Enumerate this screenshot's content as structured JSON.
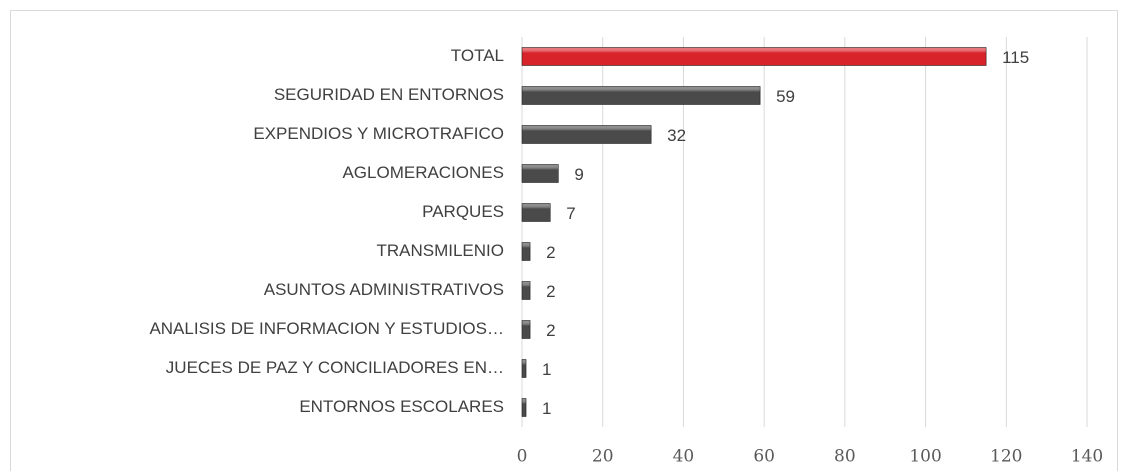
{
  "chart_data": {
    "type": "hbar",
    "categories": [
      "TOTAL",
      "SEGURIDAD EN ENTORNOS",
      "EXPENDIOS Y MICROTRAFICO",
      "AGLOMERACIONES",
      "PARQUES",
      "TRANSMILENIO",
      "ASUNTOS ADMINISTRATIVOS",
      "ANALISIS DE INFORMACION Y ESTUDIOS…",
      "JUECES DE PAZ Y CONCILIADORES EN…",
      "ENTORNOS ESCOLARES"
    ],
    "values": [
      115,
      59,
      32,
      9,
      7,
      2,
      2,
      2,
      1,
      1
    ],
    "colors": [
      "#d9232a",
      "#4a4a4a",
      "#4a4a4a",
      "#4a4a4a",
      "#4a4a4a",
      "#4a4a4a",
      "#4a4a4a",
      "#4a4a4a",
      "#4a4a4a",
      "#4a4a4a"
    ],
    "xlim": [
      0,
      140
    ],
    "xticks": [
      0,
      20,
      40,
      60,
      80,
      100,
      120,
      140
    ],
    "grid": true
  }
}
